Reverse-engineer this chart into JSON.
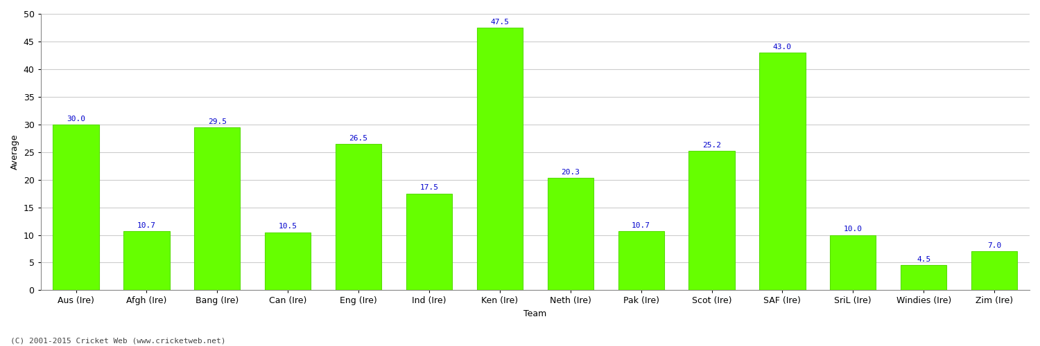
{
  "categories": [
    "Aus (Ire)",
    "Afgh (Ire)",
    "Bang (Ire)",
    "Can (Ire)",
    "Eng (Ire)",
    "Ind (Ire)",
    "Ken (Ire)",
    "Neth (Ire)",
    "Pak (Ire)",
    "Scot (Ire)",
    "SAF (Ire)",
    "SriL (Ire)",
    "Windies (Ire)",
    "Zim (Ire)"
  ],
  "values": [
    30.0,
    10.7,
    29.5,
    10.5,
    26.5,
    17.5,
    47.5,
    20.3,
    10.7,
    25.2,
    43.0,
    10.0,
    4.5,
    7.0
  ],
  "bar_color": "#66ff00",
  "bar_edge_color": "#55dd00",
  "label_color": "#0000cc",
  "ylabel": "Average",
  "xlabel": "Team",
  "ylim": [
    0,
    50
  ],
  "yticks": [
    0,
    5,
    10,
    15,
    20,
    25,
    30,
    35,
    40,
    45,
    50
  ],
  "grid_color": "#cccccc",
  "background_color": "#ffffff",
  "footer": "(C) 2001-2015 Cricket Web (www.cricketweb.net)",
  "axis_label_fontsize": 9,
  "tick_fontsize": 9,
  "value_label_fontsize": 8,
  "bar_width": 0.65
}
